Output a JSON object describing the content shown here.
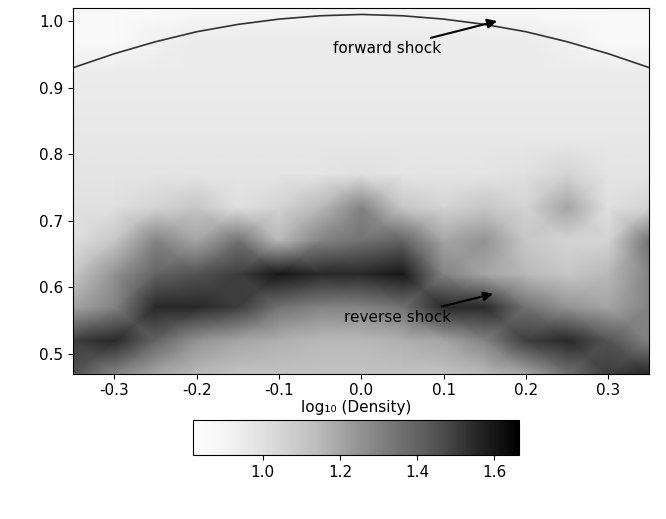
{
  "chart_data": {
    "type": "heatmap",
    "xlim": [
      -0.35,
      0.35
    ],
    "ylim": [
      0.47,
      1.02
    ],
    "xticks": [
      -0.3,
      -0.2,
      -0.1,
      0.0,
      0.1,
      0.2,
      0.3
    ],
    "yticks": [
      0.5,
      0.6,
      0.7,
      0.8,
      0.9,
      1.0
    ],
    "x": [
      -0.35,
      -0.3,
      -0.25,
      -0.2,
      -0.15,
      -0.1,
      -0.05,
      0.0,
      0.05,
      0.1,
      0.15,
      0.2,
      0.25,
      0.3,
      0.35
    ],
    "y": [
      0.47,
      0.52,
      0.57,
      0.62,
      0.67,
      0.72,
      0.77,
      0.82,
      0.87,
      0.92,
      0.97,
      1.02
    ],
    "cells": [
      [
        1.45,
        1.3,
        1.2,
        1.15,
        1.12,
        1.12,
        1.12,
        1.12,
        1.12,
        1.12,
        1.15,
        1.2,
        1.35,
        1.5,
        1.55
      ],
      [
        1.5,
        1.55,
        1.4,
        1.25,
        1.2,
        1.17,
        1.15,
        1.15,
        1.17,
        1.2,
        1.3,
        1.5,
        1.55,
        1.45,
        1.3
      ],
      [
        1.2,
        1.3,
        1.55,
        1.55,
        1.5,
        1.35,
        1.3,
        1.3,
        1.35,
        1.55,
        1.55,
        1.35,
        1.25,
        1.2,
        1.3
      ],
      [
        1.1,
        1.25,
        1.4,
        1.45,
        1.5,
        1.6,
        1.55,
        1.55,
        1.6,
        1.3,
        1.2,
        1.15,
        1.1,
        1.15,
        1.3
      ],
      [
        1.0,
        1.1,
        1.3,
        1.2,
        1.35,
        1.15,
        1.3,
        1.35,
        1.4,
        1.2,
        1.25,
        1.1,
        1.05,
        1.05,
        1.35
      ],
      [
        1.0,
        1.0,
        1.05,
        1.1,
        1.0,
        1.05,
        1.15,
        1.3,
        1.1,
        1.05,
        1.1,
        1.05,
        1.2,
        1.0,
        1.05
      ],
      [
        0.98,
        0.98,
        0.98,
        0.98,
        0.98,
        0.98,
        0.98,
        1.0,
        0.98,
        0.98,
        0.98,
        1.0,
        1.05,
        0.98,
        0.98
      ],
      [
        0.97,
        0.97,
        0.97,
        0.97,
        0.97,
        0.97,
        0.97,
        0.97,
        0.97,
        0.97,
        0.97,
        0.97,
        0.97,
        0.97,
        0.97
      ],
      [
        0.96,
        0.96,
        0.96,
        0.96,
        0.96,
        0.96,
        0.96,
        0.96,
        0.96,
        0.96,
        0.96,
        0.96,
        0.96,
        0.96,
        0.96
      ],
      [
        0.95,
        0.95,
        0.95,
        0.95,
        0.95,
        0.95,
        0.95,
        0.95,
        0.95,
        0.95,
        0.95,
        0.95,
        0.95,
        0.95,
        0.95
      ],
      [
        0.86,
        0.86,
        0.92,
        0.95,
        0.95,
        0.95,
        0.95,
        0.95,
        0.95,
        0.95,
        0.95,
        0.95,
        0.92,
        0.86,
        0.86
      ],
      [
        0.86,
        0.86,
        0.86,
        0.86,
        0.86,
        0.88,
        0.9,
        0.9,
        0.9,
        0.88,
        0.86,
        0.86,
        0.86,
        0.86,
        0.86
      ]
    ],
    "series": [
      {
        "color": "#333333",
        "x": [
          -0.35,
          -0.3,
          -0.25,
          -0.2,
          -0.15,
          -0.1,
          -0.05,
          0.0,
          0.05,
          0.1,
          0.15,
          0.2,
          0.25,
          0.3,
          0.35
        ],
        "values": [
          0.93,
          0.951,
          0.969,
          0.984,
          0.995,
          1.003,
          1.008,
          1.01,
          1.008,
          1.003,
          0.995,
          0.984,
          0.969,
          0.951,
          0.93
        ]
      }
    ],
    "annotations": [
      {
        "text": "forward shock",
        "x": 0.165,
        "y": 1.0
      },
      {
        "text": "reverse shock",
        "x": 0.16,
        "y": 0.59
      }
    ],
    "colorbar": {
      "label": "log₁₀ (Density)",
      "range": [
        0.82,
        1.665
      ],
      "ticks": [
        1.0,
        1.2,
        1.4,
        1.6
      ]
    }
  }
}
